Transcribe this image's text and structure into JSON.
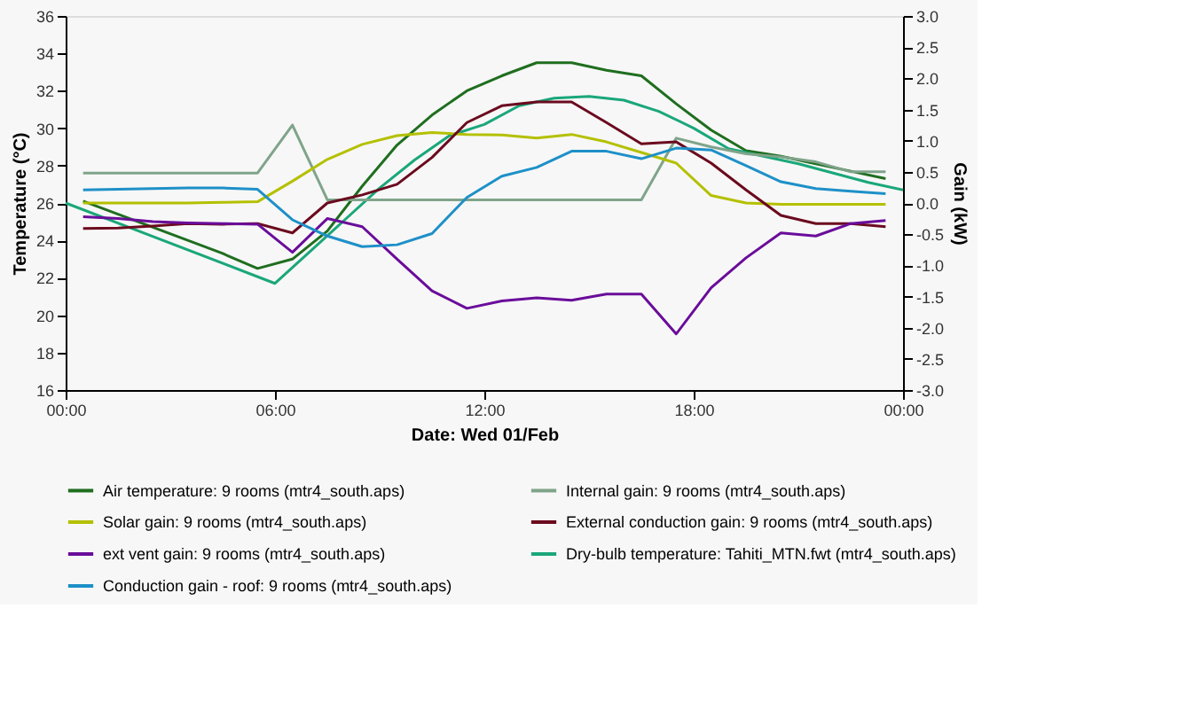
{
  "chart_data": {
    "type": "line",
    "xlabel": "Date: Wed 01/Feb",
    "ylabel": "Temperature (°C)",
    "y2label": "Gain (kW)",
    "x": [
      0.5,
      1.5,
      2.5,
      3.5,
      4.5,
      5.5,
      6.5,
      7.5,
      8.5,
      9.5,
      10.5,
      11.5,
      12.5,
      13.5,
      14.5,
      15.5,
      16.5,
      17.5,
      18.5,
      19.5,
      20.5,
      21.5,
      22.5,
      23.5
    ],
    "xlim": [
      0,
      24
    ],
    "xticks": [
      {
        "value": 0,
        "label": "00:00"
      },
      {
        "value": 6,
        "label": "06:00"
      },
      {
        "value": 12,
        "label": "12:00"
      },
      {
        "value": 18,
        "label": "18:00"
      },
      {
        "value": 24,
        "label": "00:00"
      }
    ],
    "ylim": [
      16,
      36
    ],
    "yticks": [
      16,
      18,
      20,
      22,
      24,
      26,
      28,
      30,
      32,
      34,
      36
    ],
    "y2lim": [
      -3,
      3
    ],
    "y2ticks": [
      {
        "value": -3,
        "label": "-3.0"
      },
      {
        "value": -2.5,
        "label": "-2.5"
      },
      {
        "value": -2,
        "label": "-2.0"
      },
      {
        "value": -1.5,
        "label": "-1.5"
      },
      {
        "value": -1,
        "label": "-1.0"
      },
      {
        "value": -0.5,
        "label": "-0.5"
      },
      {
        "value": 0,
        "label": "0.0"
      },
      {
        "value": 0.5,
        "label": "0.5"
      },
      {
        "value": 1,
        "label": "1.0"
      },
      {
        "value": 1.5,
        "label": "1.5"
      },
      {
        "value": 2,
        "label": "2.0"
      },
      {
        "value": 2.5,
        "label": "2.5"
      },
      {
        "value": 3,
        "label": "3.0"
      }
    ],
    "grid": false,
    "legend": "bottom",
    "marker": "none",
    "line_style": "solid",
    "series": [
      {
        "name": "Air temperature: 9 rooms (mtr4_south.aps)",
        "color": "#1f6e1f",
        "values": [
          26.1,
          25.4,
          24.7,
          24.0,
          23.3,
          22.5,
          23.0,
          24.5,
          26.9,
          29.1,
          30.7,
          32.0,
          32.8,
          33.5,
          33.5,
          33.1,
          32.8,
          31.3,
          29.9,
          28.8,
          28.5,
          28.1,
          27.7,
          27.3
        ]
      },
      {
        "name": "Internal gain: 9 rooms (mtr4_south.aps)",
        "color": "#7fa48a",
        "axis": "y2",
        "values": [
          0.48,
          0.48,
          0.48,
          0.48,
          0.48,
          0.48,
          1.25,
          0.05,
          0.05,
          0.05,
          0.05,
          0.05,
          0.05,
          0.05,
          0.05,
          0.05,
          0.05,
          1.04,
          0.9,
          0.79,
          0.74,
          0.66,
          0.5,
          0.5
        ]
      },
      {
        "name": "Solar gain: 9 rooms (mtr4_south.aps)",
        "color": "#b4c000",
        "axis": "y2",
        "values": [
          0.0,
          0.0,
          0.0,
          0.0,
          0.01,
          0.02,
          0.35,
          0.7,
          0.94,
          1.08,
          1.13,
          1.1,
          1.09,
          1.04,
          1.1,
          0.98,
          0.81,
          0.64,
          0.12,
          0.0,
          -0.02,
          -0.02,
          -0.02,
          -0.02
        ]
      },
      {
        "name": "External conduction gain: 9 rooms (mtr4_south.aps)",
        "color": "#6b0a1e",
        "axis": "y2",
        "values": [
          -0.41,
          -0.4,
          -0.37,
          -0.33,
          -0.34,
          -0.33,
          -0.48,
          0.0,
          0.13,
          0.3,
          0.73,
          1.29,
          1.56,
          1.62,
          1.62,
          1.29,
          0.95,
          0.98,
          0.64,
          0.21,
          -0.2,
          -0.33,
          -0.33,
          -0.38
        ]
      },
      {
        "name": "ext vent gain: 9 rooms (mtr4_south.aps)",
        "color": "#6a0d9a",
        "axis": "y2",
        "values": [
          -0.22,
          -0.25,
          -0.3,
          -0.32,
          -0.33,
          -0.34,
          -0.79,
          -0.25,
          -0.38,
          -0.9,
          -1.41,
          -1.69,
          -1.57,
          -1.52,
          -1.56,
          -1.46,
          -1.46,
          -2.1,
          -1.36,
          -0.88,
          -0.48,
          -0.53,
          -0.33,
          -0.28
        ]
      },
      {
        "name": "Dry-bulb temperature: Tahiti_MTN.fwt (mtr4_south.aps)",
        "color": "#1aa77a",
        "x": [
          0,
          6,
          7,
          8,
          9,
          10,
          11,
          12,
          13,
          14,
          15,
          16,
          17,
          18,
          19,
          20,
          21,
          22,
          23,
          24
        ],
        "values": [
          26.0,
          21.7,
          23.4,
          25.1,
          26.8,
          28.3,
          29.6,
          30.2,
          31.2,
          31.6,
          31.7,
          31.5,
          30.9,
          30.0,
          28.9,
          28.5,
          28.1,
          27.6,
          27.1,
          26.7
        ]
      },
      {
        "name": "Conduction gain - roof: 9 rooms (mtr4_south.aps)",
        "color": "#1e90c8",
        "axis": "y2",
        "values": [
          0.21,
          0.22,
          0.23,
          0.24,
          0.24,
          0.22,
          -0.27,
          -0.53,
          -0.7,
          -0.67,
          -0.49,
          0.09,
          0.43,
          0.57,
          0.83,
          0.83,
          0.71,
          0.88,
          0.85,
          0.6,
          0.34,
          0.23,
          0.19,
          0.15
        ]
      }
    ]
  }
}
